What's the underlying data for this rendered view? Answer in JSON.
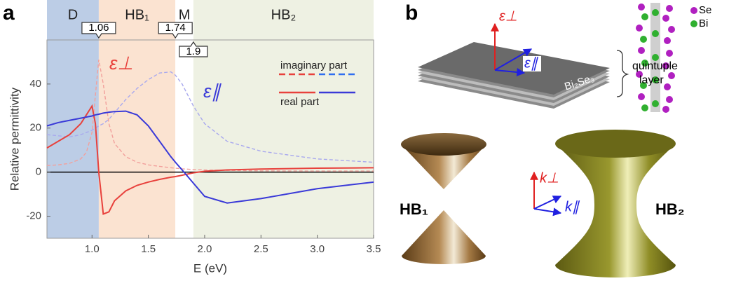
{
  "chart_data": {
    "type": "line",
    "panel_label": "a",
    "xlabel": "E (eV)",
    "ylabel": "Relative permittivity",
    "xlim": [
      0.6,
      3.5
    ],
    "ylim": [
      -30,
      60
    ],
    "xticks": [
      {
        "value": 1,
        "label": "1.0"
      },
      1.5,
      {
        "value": 2,
        "label": "2.0"
      },
      2.5,
      {
        "value": 3,
        "label": "3.0"
      },
      3.5
    ],
    "yticks": [
      -20,
      0,
      20,
      40
    ],
    "grid": false,
    "zero_line": true,
    "regions": [
      {
        "label": "D",
        "color": "#bccde6"
      },
      {
        "label": "HB₁",
        "color": "#fbe3d1"
      },
      {
        "label": "M",
        "color": "#ffffff"
      },
      {
        "label": "HB₂",
        "color": "#eef1e3"
      }
    ],
    "boundaries": [
      1.06,
      1.74,
      1.9
    ],
    "x": [
      0.6,
      0.7,
      0.8,
      0.9,
      0.95,
      1.0,
      1.03,
      1.06,
      1.1,
      1.15,
      1.2,
      1.3,
      1.4,
      1.5,
      1.6,
      1.7,
      1.74,
      1.8,
      1.9,
      2.0,
      2.2,
      2.5,
      3.0,
      3.5
    ],
    "series": [
      {
        "name": "ε⊥",
        "color": "#e8413c",
        "dashed": false,
        "values": [
          11,
          14,
          17,
          22,
          26,
          30,
          22,
          0,
          -19,
          -18,
          -13,
          -8.5,
          -6,
          -4.5,
          -3.3,
          -2.3,
          -2,
          -1.4,
          -0.3,
          0.4,
          1,
          1.4,
          1.8,
          2
        ]
      },
      {
        "name": "ε⊥",
        "color": "#f2a09c",
        "dashed": true,
        "values": [
          3,
          3.3,
          4,
          6,
          9,
          18,
          35,
          51,
          40,
          22,
          13,
          7,
          4.5,
          3.3,
          2.6,
          2,
          1.8,
          1.5,
          1.2,
          1,
          0.8,
          0.6,
          0.5,
          0.5
        ]
      },
      {
        "name": "ε∥",
        "color": "#3a3ad8",
        "dashed": false,
        "values": [
          21,
          22.5,
          23.5,
          24.5,
          25,
          25.5,
          26,
          26.3,
          26.8,
          27.2,
          27.5,
          27.7,
          26,
          21,
          14,
          7,
          4.5,
          1,
          -5,
          -11,
          -14,
          -12,
          -7.5,
          -4.5
        ]
      },
      {
        "name": "ε∥",
        "color": "#a9a9ee",
        "dashed": true,
        "values": [
          17,
          16.5,
          16,
          17,
          18,
          19,
          20,
          21,
          22,
          24,
          27,
          33,
          38,
          42,
          45,
          45.5,
          44,
          40,
          30,
          22,
          14,
          9.5,
          6,
          4.5
        ]
      }
    ],
    "legend": [
      {
        "label": "imaginary part",
        "dashed": true
      },
      {
        "label": "real part",
        "dashed": false
      }
    ]
  },
  "panel_b": {
    "panel_label": "b",
    "material": "Bi₂Se₃",
    "eps_perp": "ε⊥",
    "eps_par": "ε∥",
    "atoms": [
      "Se",
      "Bi"
    ],
    "layer_label": [
      "quintuple",
      "layer"
    ],
    "hb1": "HB₁",
    "hb2": "HB₂",
    "k_perp": "k⊥",
    "k_par": "k∥"
  }
}
